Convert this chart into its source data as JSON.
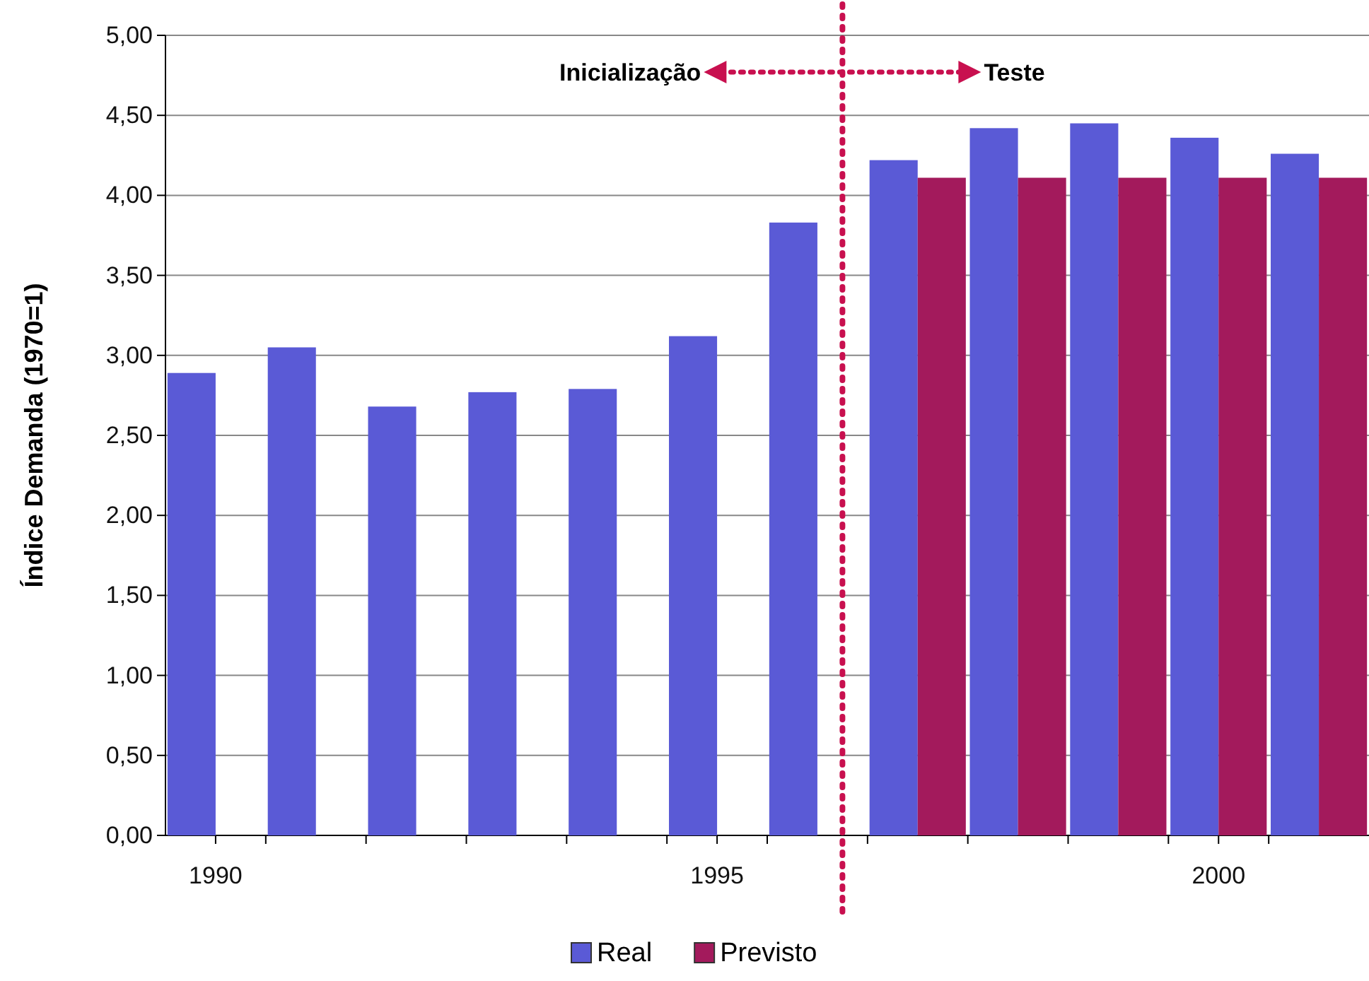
{
  "chart_data": {
    "type": "bar",
    "ylabel": "Índice Demanda (1970=1)",
    "x": [
      1990,
      1991,
      1992,
      1993,
      1994,
      1995,
      1996,
      1997,
      1998,
      1999,
      2000,
      2001
    ],
    "xlim": [
      1989.5,
      2001.5
    ],
    "xticks": [
      1990,
      1995,
      2000
    ],
    "series": [
      {
        "name": "Real",
        "color": "#5a5ad6",
        "values": [
          2.89,
          3.05,
          2.68,
          2.77,
          2.79,
          3.12,
          3.83,
          4.22,
          4.42,
          4.45,
          4.36,
          4.26
        ]
      },
      {
        "name": "Previsto",
        "color": "#a31a5c",
        "values": [
          null,
          null,
          null,
          null,
          null,
          null,
          null,
          4.11,
          4.11,
          4.11,
          4.11,
          4.11
        ]
      }
    ],
    "ylim": [
      0,
      5
    ],
    "yticks": [
      {
        "value": 0,
        "label": "0,00"
      },
      {
        "value": 0.5,
        "label": "0,50"
      },
      {
        "value": 1,
        "label": "1,00"
      },
      {
        "value": 1.5,
        "label": "1,50"
      },
      {
        "value": 2,
        "label": "2,00"
      },
      {
        "value": 2.5,
        "label": "2,50"
      },
      {
        "value": 3,
        "label": "3,00"
      },
      {
        "value": 3.5,
        "label": "3,50"
      },
      {
        "value": 4,
        "label": "4,00"
      },
      {
        "value": 4.5,
        "label": "4,50"
      },
      {
        "value": 5,
        "label": "5,00"
      }
    ],
    "grid": "y",
    "legend": "bottom",
    "ref_lines": [
      {
        "axis": "x",
        "value": 1996.25,
        "color": "#c8104f",
        "line_style": "dotted"
      }
    ],
    "annotations": [
      "Inicialização",
      "Teste"
    ]
  }
}
